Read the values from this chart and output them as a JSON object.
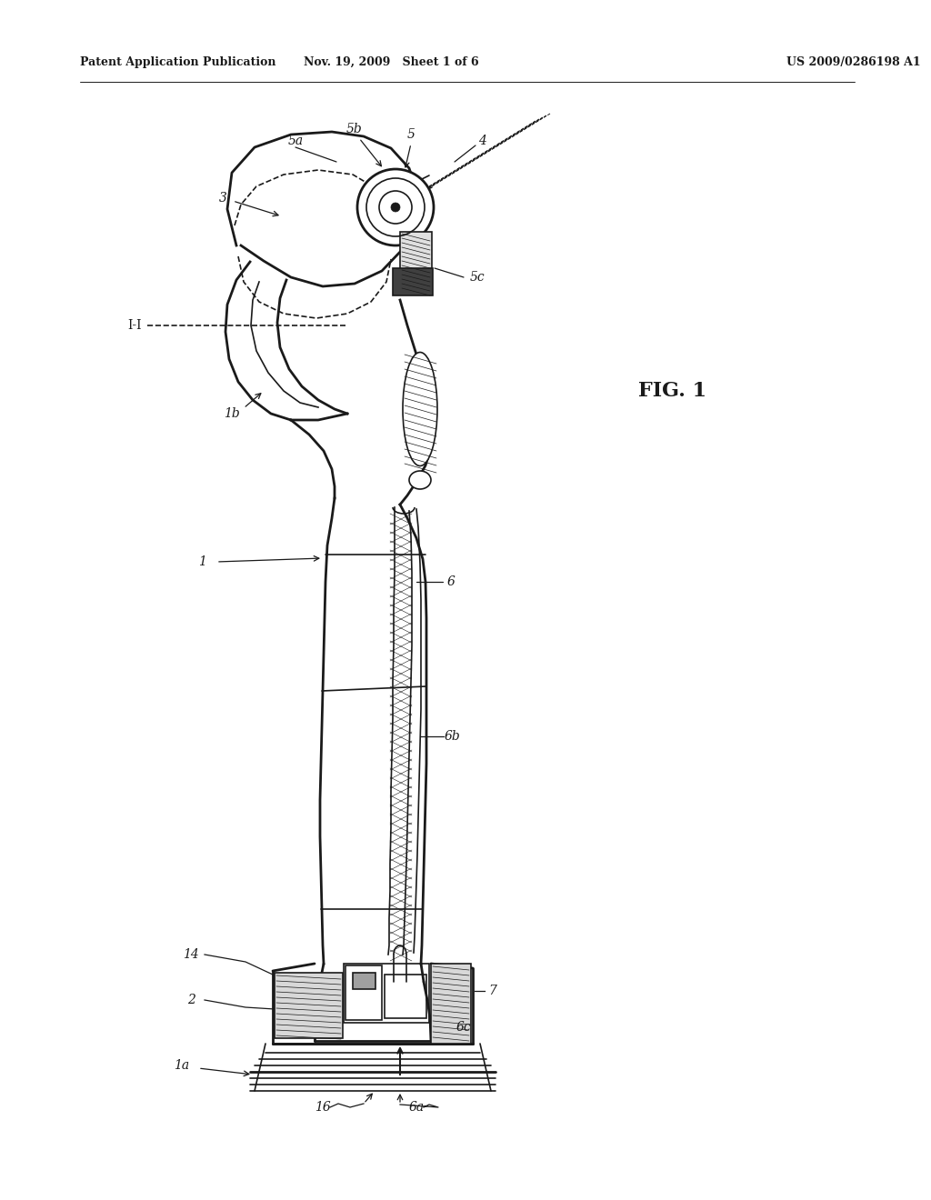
{
  "header_left": "Patent Application Publication",
  "header_mid": "Nov. 19, 2009   Sheet 1 of 6",
  "header_right": "US 2009/0286198 A1",
  "fig_label": "FIG. 1",
  "bg_color": "#ffffff",
  "line_color": "#1a1a1a"
}
